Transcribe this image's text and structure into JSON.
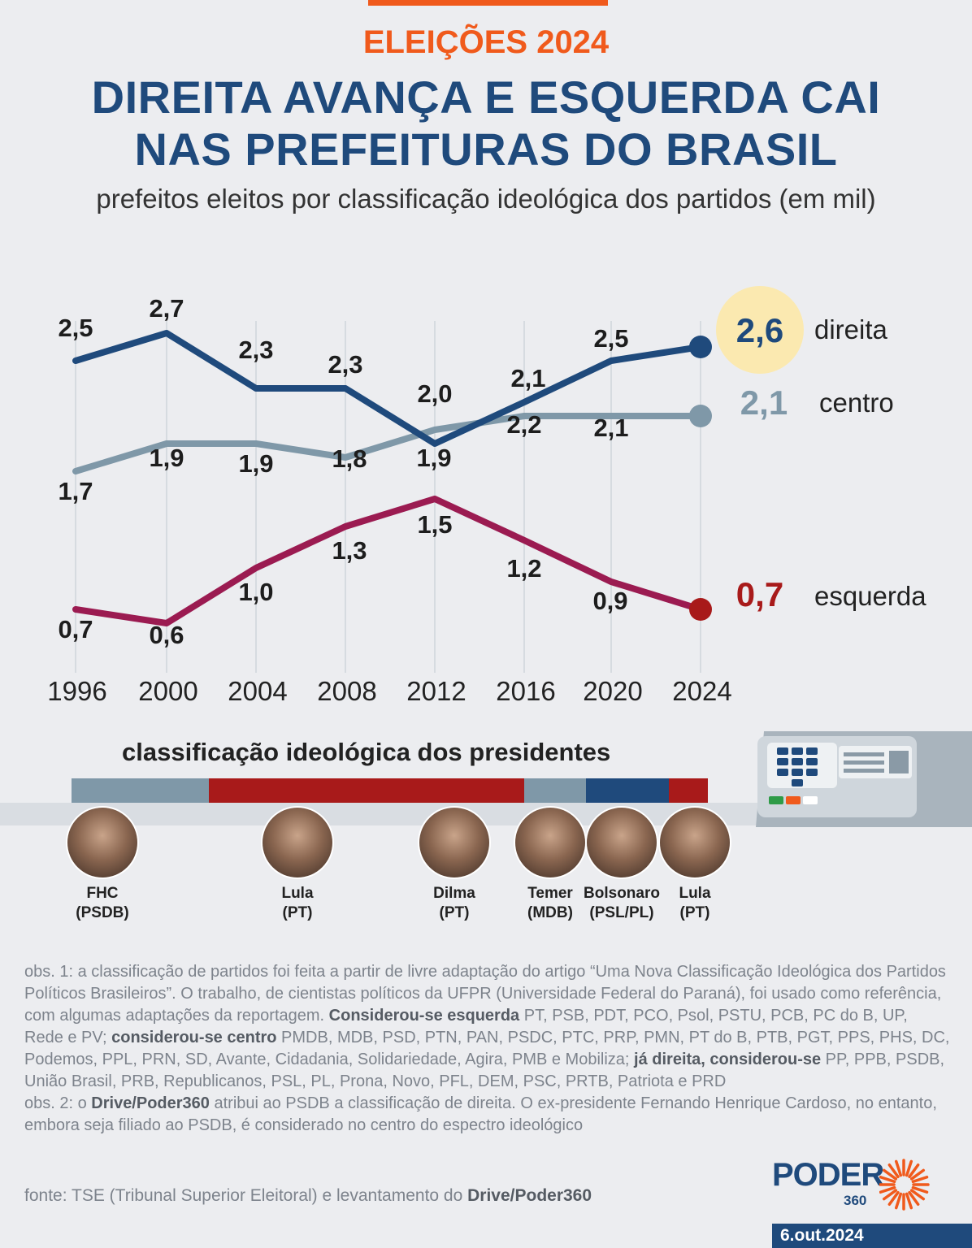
{
  "kicker": "ELEIÇÕES 2024",
  "headline": [
    "DIREITA AVANÇA E ESQUERDA CAI",
    "NAS PREFEITURAS DO BRASIL"
  ],
  "subtitle": "prefeitos eleitos por classificação ideológica dos partidos (em mil)",
  "colors": {
    "direita": "#1f4a7c",
    "centro": "#7f98a8",
    "esquerda": "#9b1b51",
    "accent": "#f05a1c",
    "highlight": "#fbe9b0",
    "esquerda_end": "#a81a1a"
  },
  "chart_data": {
    "type": "line",
    "x": [
      "1996",
      "2000",
      "2004",
      "2008",
      "2012",
      "2016",
      "2020",
      "2024"
    ],
    "series": [
      {
        "name": "direita",
        "values": [
          2.5,
          2.7,
          2.3,
          2.3,
          1.9,
          2.2,
          2.5,
          2.6
        ],
        "labels": [
          "2,5",
          "2,7",
          "2,3",
          "2,3",
          "1,9",
          "2,2",
          "2,5",
          "2,6"
        ]
      },
      {
        "name": "centro",
        "values": [
          1.7,
          1.9,
          1.9,
          1.8,
          2.0,
          2.1,
          2.1,
          2.1
        ],
        "labels": [
          "1,7",
          "1,9",
          "1,9",
          "1,8",
          "2,0",
          "2,1",
          "2,1",
          "2,1"
        ]
      },
      {
        "name": "esquerda",
        "values": [
          0.7,
          0.6,
          1.0,
          1.3,
          1.5,
          1.2,
          0.9,
          0.7
        ],
        "labels": [
          "0,7",
          "0,6",
          "1,0",
          "1,3",
          "1,5",
          "1,2",
          "0,9",
          "0,7"
        ]
      }
    ],
    "grid": "vertical"
  },
  "presidents_section": {
    "title": "classificação ideológica dos presidentes",
    "bands": [
      {
        "ideology": "centro",
        "color": "#7f98a8"
      },
      {
        "ideology": "esquerda",
        "color": "#a81a1a"
      },
      {
        "ideology": "centro",
        "color": "#7f98a8"
      },
      {
        "ideology": "direita",
        "color": "#1f4a7c"
      },
      {
        "ideology": "esquerda",
        "color": "#a81a1a"
      }
    ],
    "people": [
      {
        "name": "FHC",
        "party": "(PSDB)"
      },
      {
        "name": "Lula",
        "party": "(PT)"
      },
      {
        "name": "Dilma",
        "party": "(PT)"
      },
      {
        "name": "Temer",
        "party": "(MDB)"
      },
      {
        "name": "Bolsonaro",
        "party": "(PSL/PL)"
      },
      {
        "name": "Lula",
        "party": "(PT)"
      }
    ]
  },
  "notes": {
    "obs1_a": "obs. 1: a classificação de partidos foi feita a partir de livre adaptação do artigo “Uma Nova Classificação Ideológica dos Partidos Políticos Brasileiros”. O trabalho, de cientistas políticos da UFPR (Universidade Federal do Paraná), foi usado como referência, com algumas adaptações da reportagem.",
    "obs1_b_bold": "Considerou-se esquerda",
    "obs1_b": " PT, PSB,  PDT, PCO, Psol, PSTU, PCB, PC do B, UP, Rede e PV; ",
    "obs1_c_bold": "considerou-se centro",
    "obs1_c": " PMDB, MDB, PSD,  PTN, PAN, PSDC, PTC, PRP, PMN, PT do B, PTB, PGT, PPS, PHS, DC, Podemos, PPL, PRN, SD, Avante, Cidadania, Solidariedade, Agira, PMB e Mobiliza; ",
    "obs1_d_bold": "já direita, considerou-se",
    "obs1_d": " PP, PPB, PSDB, União Brasil, PRB, Republicanos, PSL, PL, Prona, Novo, PFL, DEM, PSC, PRTB, Patriota e PRD",
    "obs2_a": "obs. 2: o ",
    "obs2_bold": "Drive/Poder360",
    "obs2_b": " atribui ao PSDB a classificação de direita. O ex-presidente Fernando Henrique Cardoso, no entanto, embora seja filiado ao PSDB, é considerado no centro do espectro ideológico"
  },
  "source": {
    "prefix": "fonte: TSE (Tribunal Superior Eleitoral) e levantamento do ",
    "bold": "Drive/Poder360"
  },
  "logo": {
    "text": "PODER",
    "number": "360"
  },
  "date": "6.out.2024",
  "icons": [
    "ballot-box-icon",
    "sun-rays-icon"
  ]
}
